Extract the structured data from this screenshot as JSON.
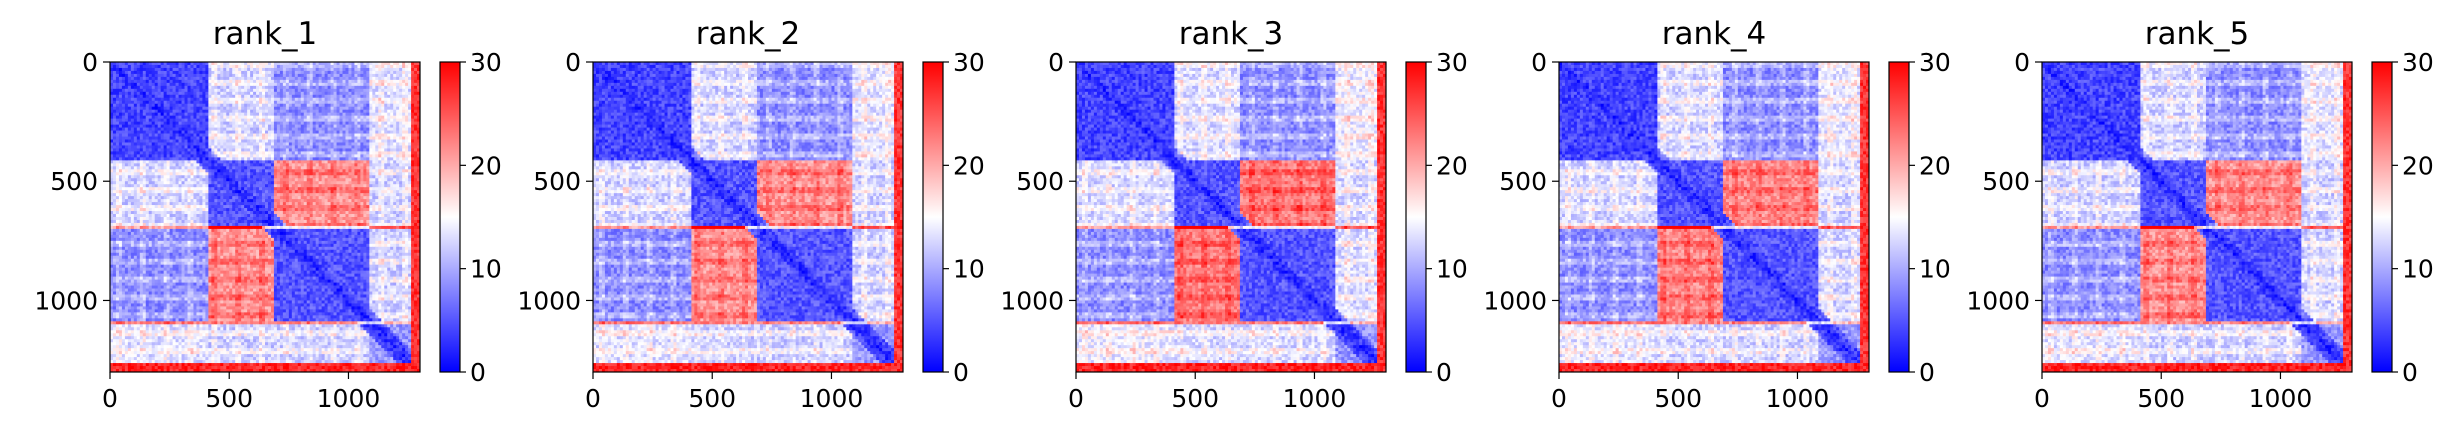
{
  "chart_data": [
    {
      "type": "heatmap",
      "title": "rank_1",
      "xlim": [
        0,
        1300
      ],
      "ylim": [
        1300,
        0
      ],
      "xticks": [
        0,
        500,
        1000
      ],
      "yticks": [
        0,
        500,
        1000
      ],
      "colorbar": {
        "cmap": "bwr",
        "range": [
          0,
          30
        ],
        "ticks": [
          0,
          10,
          20,
          30
        ]
      },
      "intensity": 1.0
    },
    {
      "type": "heatmap",
      "title": "rank_2",
      "xlim": [
        0,
        1300
      ],
      "ylim": [
        1300,
        0
      ],
      "xticks": [
        0,
        500,
        1000
      ],
      "yticks": [
        0,
        500,
        1000
      ],
      "colorbar": {
        "cmap": "bwr",
        "range": [
          0,
          30
        ],
        "ticks": [
          0,
          10,
          20,
          30
        ]
      },
      "intensity": 1.0
    },
    {
      "type": "heatmap",
      "title": "rank_3",
      "xlim": [
        0,
        1300
      ],
      "ylim": [
        1300,
        0
      ],
      "xticks": [
        0,
        500,
        1000
      ],
      "yticks": [
        0,
        500,
        1000
      ],
      "colorbar": {
        "cmap": "bwr",
        "range": [
          0,
          30
        ],
        "ticks": [
          0,
          10,
          20,
          30
        ]
      },
      "intensity": 1.12
    },
    {
      "type": "heatmap",
      "title": "rank_4",
      "xlim": [
        0,
        1300
      ],
      "ylim": [
        1300,
        0
      ],
      "xticks": [
        0,
        500,
        1000
      ],
      "yticks": [
        0,
        500,
        1000
      ],
      "colorbar": {
        "cmap": "bwr",
        "range": [
          0,
          30
        ],
        "ticks": [
          0,
          10,
          20,
          30
        ]
      },
      "intensity": 1.05
    },
    {
      "type": "heatmap",
      "title": "rank_5",
      "xlim": [
        0,
        1300
      ],
      "ylim": [
        1300,
        0
      ],
      "xticks": [
        0,
        500,
        1000
      ],
      "yticks": [
        0,
        500,
        1000
      ],
      "colorbar": {
        "cmap": "bwr",
        "range": [
          0,
          30
        ],
        "ticks": [
          0,
          10,
          20,
          30
        ]
      },
      "intensity": 1.0
    }
  ]
}
